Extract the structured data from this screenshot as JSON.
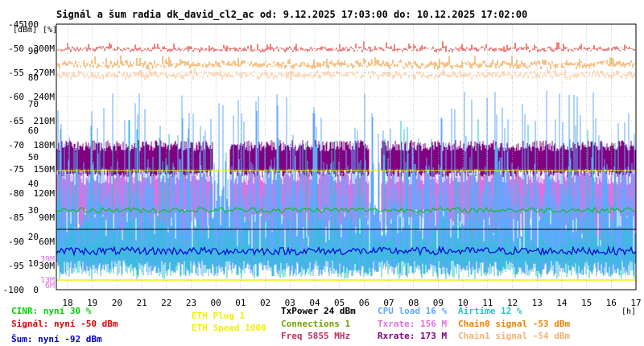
{
  "chart_data": {
    "type": "line",
    "title": "Signál a šum radia dk_david_cl2_ac od: 9.12.2025 17:03:00 do: 10.12.2025 17:02:00",
    "unit_labels": {
      "dbm": "[dBm]",
      "percent": "[%]",
      "hours": "[h]"
    },
    "dbm_ticks": [
      "-45",
      "-50",
      "-55",
      "-60",
      "-65",
      "-70",
      "-75",
      "-80",
      "-85",
      "-90",
      "-95",
      "-100"
    ],
    "percent_ticks": [
      "100",
      "90",
      "80",
      "70",
      "60",
      "50",
      "40",
      "30",
      "20",
      "10",
      "0"
    ],
    "rate_ticks": [
      "300M",
      "270M",
      "240M",
      "210M",
      "180M",
      "150M",
      "120M",
      "90M",
      "60M",
      "30M"
    ],
    "rate_low_ticks": [
      "39M",
      "13M",
      "6M"
    ],
    "x_ticks": [
      "18",
      "19",
      "20",
      "21",
      "22",
      "23",
      "00",
      "01",
      "02",
      "03",
      "04",
      "05",
      "06",
      "07",
      "08",
      "09",
      "10",
      "11",
      "12",
      "13",
      "14",
      "15",
      "16",
      "17"
    ],
    "ylim_dbm": [
      -100,
      -45
    ],
    "ylim_percent": [
      0,
      100
    ],
    "ylim_rate": [
      0,
      330
    ],
    "series_levels": [
      {
        "key": "signal",
        "color": "#e00000",
        "value_dbm": -50
      },
      {
        "key": "chain0",
        "color": "#f08000",
        "value_dbm": -53
      },
      {
        "key": "chain1",
        "color": "#f8b070",
        "value_dbm": -54
      },
      {
        "key": "rxrate",
        "color": "#800080",
        "value_mbit": 173
      },
      {
        "key": "txrate",
        "color": "#e070e0",
        "value_mbit": 156
      },
      {
        "key": "noise",
        "color": "#0000d0",
        "value_dbm": -92
      },
      {
        "key": "cinr",
        "color": "#00c000",
        "value_percent": 30
      },
      {
        "key": "cpu",
        "color": "#60a8ff",
        "value_percent": 16
      },
      {
        "key": "airtime",
        "color": "#20c8c8",
        "value_percent": 12
      },
      {
        "key": "txpower",
        "color": "#000000",
        "value_dbm": 24
      },
      {
        "key": "eth_speed",
        "color": "#f0f000",
        "value": 1000
      }
    ],
    "legend": {
      "cinr": {
        "text": "CINR: nyní 30 %",
        "color": "#00d000"
      },
      "signal": {
        "text": "Signál: nyní -50 dBm",
        "color": "#e00000"
      },
      "noise": {
        "text": "Šum: nyní -92 dBm",
        "color": "#0000d0"
      },
      "eth_plug": {
        "text": "ETH Plug 1",
        "color": "#f0f000"
      },
      "eth_speed": {
        "text": "ETH Speed 1000",
        "color": "#f0f000"
      },
      "txpower": {
        "text": "TxPower 24 dBm",
        "color": "#000000"
      },
      "connections": {
        "text": "Connections 1",
        "color": "#70a000"
      },
      "freq": {
        "text": "Freq 5855 MHz",
        "color": "#c03060"
      },
      "cpu": {
        "text": "CPU load 16 %",
        "color": "#60a8ff"
      },
      "txrate": {
        "text": "Txrate: 156 M",
        "color": "#e070e0"
      },
      "rxrate": {
        "text": "Rxrate: 173 M",
        "color": "#800080"
      },
      "airtime": {
        "text": "Airtime 12 %",
        "color": "#20c8c8"
      },
      "chain0": {
        "text": "Chain0 signal -53 dBm",
        "color": "#f08000"
      },
      "chain1": {
        "text": "Chain1 signal -54 dBm",
        "color": "#f8b070"
      }
    }
  }
}
